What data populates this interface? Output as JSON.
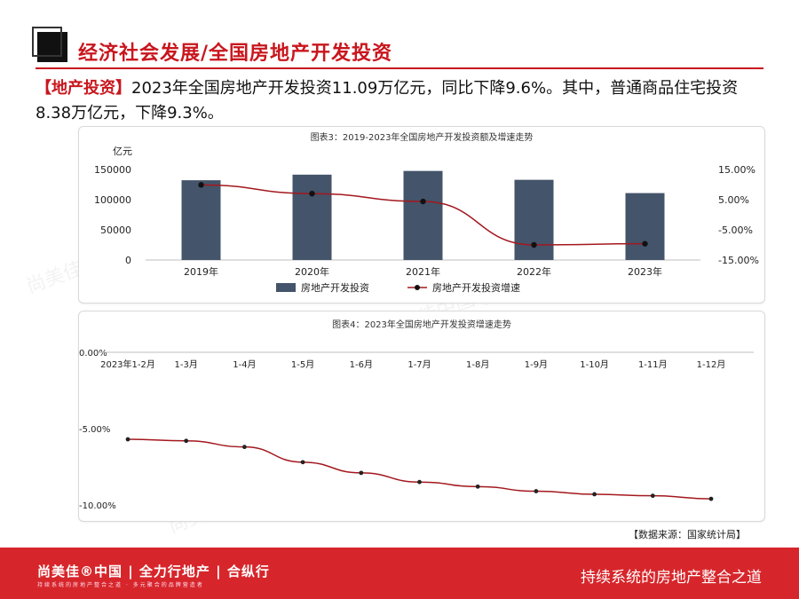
{
  "header": {
    "title": "经济社会发展/全国房地产开发投资"
  },
  "intro": {
    "tag": "【地产投资】",
    "text": "2023年全国房地产开发投资11.09万亿元，同比下降9.6%。其中，普通商品住宅投资8.38万亿元，下降9.3%。"
  },
  "chart_data": [
    {
      "type": "bar",
      "title": "图表3：2019-2023年全国房地产开发投资额及增速走势",
      "ylabel": "亿元",
      "categories": [
        "2019年",
        "2020年",
        "2021年",
        "2022年",
        "2023年"
      ],
      "ylim": [
        0,
        150000
      ],
      "yticks": [
        "150000",
        "100000",
        "50000",
        "0"
      ],
      "y2lim": [
        -0.15,
        0.15
      ],
      "y2ticks": [
        "15.00%",
        "5.00%",
        "-5.00%",
        "-15.00%"
      ],
      "series": [
        {
          "name": "房地产开发投资",
          "type": "bar",
          "axis": "left",
          "color": "#44546a",
          "values": [
            132194,
            141443,
            147602,
            132895,
            110913
          ]
        },
        {
          "name": "房地产开发投资增速",
          "type": "line",
          "axis": "right",
          "color": "#a3181e",
          "values": [
            0.099,
            0.07,
            0.044,
            -0.1,
            -0.096
          ]
        }
      ],
      "legend": "bottom"
    },
    {
      "type": "line",
      "title": "图表4：2023年全国房地产开发投资增速走势",
      "categories": [
        "2023年1-2月",
        "1-3月",
        "1-4月",
        "1-5月",
        "1-6月",
        "1-7月",
        "1-8月",
        "1-9月",
        "1-10月",
        "1-11月",
        "1-12月"
      ],
      "ylim": [
        -0.1,
        0.0
      ],
      "yticks": [
        "0.00%",
        "-5.00%",
        "-10.00%"
      ],
      "series": [
        {
          "color": "#a3181e",
          "values": [
            -0.057,
            -0.058,
            -0.062,
            -0.072,
            -0.079,
            -0.085,
            -0.088,
            -0.091,
            -0.093,
            -0.094,
            -0.096
          ]
        }
      ]
    }
  ],
  "source": "【数据来源：国家统计局】",
  "footer": {
    "brand": "尚美佳®中国 | 全力行地产 | 合纵行",
    "sub": "持续系统的房地产整合之道 · 多元聚合的品牌营造者",
    "slogan": "持续系统的房地产整合之道"
  }
}
